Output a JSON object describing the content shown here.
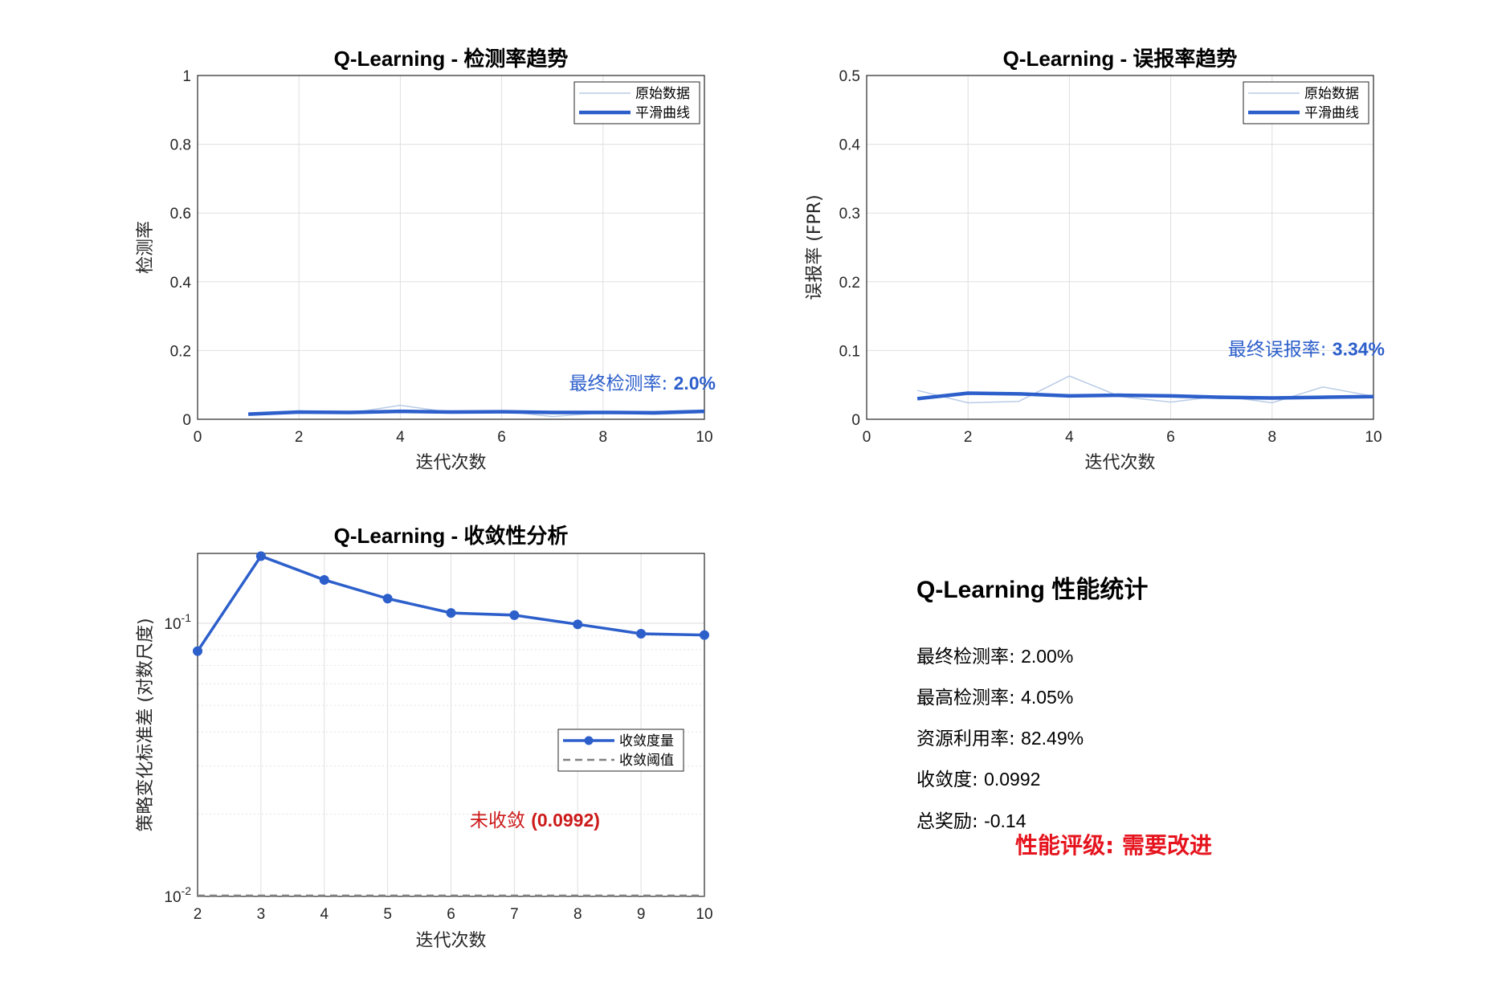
{
  "colors": {
    "main": "#2d5fcb",
    "raw": "#b9cbe6",
    "threshold": "#808080",
    "warn": "#cc1a1a",
    "rating": "#e6141e"
  },
  "chart_data": [
    {
      "id": "detect",
      "type": "line",
      "title": "Q-Learning - 检测率趋势",
      "xlabel": "迭代次数",
      "ylabel": "检测率",
      "xlim": [
        0,
        10
      ],
      "ylim": [
        0,
        1
      ],
      "xticks": [
        "0",
        "2",
        "4",
        "6",
        "8",
        "10"
      ],
      "yticks": [
        "0",
        "0.2",
        "0.4",
        "0.6",
        "0.8",
        "1"
      ],
      "grid": true,
      "legend": "top-right",
      "series": [
        {
          "name": "原始数据",
          "x": [
            1,
            2,
            3,
            4,
            5,
            6,
            7,
            8,
            9,
            10
          ],
          "values": [
            0.012,
            0.022,
            0.018,
            0.0405,
            0.02,
            0.024,
            0.008,
            0.019,
            0.014,
            0.02
          ]
        },
        {
          "name": "平滑曲线",
          "x": [
            1,
            2,
            3,
            4,
            5,
            6,
            7,
            8,
            9,
            10
          ],
          "values": [
            0.015,
            0.021,
            0.02,
            0.023,
            0.021,
            0.022,
            0.02,
            0.02,
            0.019,
            0.023
          ]
        }
      ],
      "annotation": {
        "label": "最终检测率: ",
        "value": "2.0%",
        "x": 10,
        "y": 0.1
      }
    },
    {
      "id": "fpr",
      "type": "line",
      "title": "Q-Learning - 误报率趋势",
      "xlabel": "迭代次数",
      "ylabel": "误报率 (FPR)",
      "xlim": [
        0,
        10
      ],
      "ylim": [
        0,
        0.5
      ],
      "xticks": [
        "0",
        "2",
        "4",
        "6",
        "8",
        "10"
      ],
      "yticks": [
        "0",
        "0.1",
        "0.2",
        "0.3",
        "0.4",
        "0.5"
      ],
      "grid": true,
      "legend": "top-right",
      "series": [
        {
          "name": "原始数据",
          "x": [
            1,
            2,
            3,
            4,
            5,
            6,
            7,
            8,
            9,
            10
          ],
          "values": [
            0.042,
            0.024,
            0.026,
            0.063,
            0.033,
            0.025,
            0.034,
            0.024,
            0.047,
            0.0334
          ]
        },
        {
          "name": "平滑曲线",
          "x": [
            1,
            2,
            3,
            4,
            5,
            6,
            7,
            8,
            9,
            10
          ],
          "values": [
            0.03,
            0.038,
            0.037,
            0.034,
            0.035,
            0.034,
            0.032,
            0.031,
            0.032,
            0.033
          ]
        }
      ],
      "annotation": {
        "label": "最终误报率: ",
        "value": "3.34%",
        "x": 10,
        "y": 0.1
      }
    },
    {
      "id": "conv",
      "type": "line",
      "title": "Q-Learning - 收敛性分析",
      "xlabel": "迭代次数",
      "ylabel": "策略变化标准差 (对数尺度)",
      "xlim": [
        2,
        10
      ],
      "ylim": [
        0.01,
        0.18
      ],
      "yscale": "log",
      "xticks": [
        "2",
        "3",
        "4",
        "5",
        "6",
        "7",
        "8",
        "9",
        "10"
      ],
      "yticks": [
        {
          "base": "10",
          "exp": "-2",
          "value": 0.01
        },
        {
          "base": "10",
          "exp": "-1",
          "value": 0.1
        }
      ],
      "grid": true,
      "legend": "center-right",
      "series": [
        {
          "name": "收敛度量",
          "x": [
            2,
            3,
            4,
            5,
            6,
            7,
            8,
            9,
            10
          ],
          "values": [
            0.079,
            0.176,
            0.144,
            0.123,
            0.109,
            0.107,
            0.099,
            0.0915,
            0.0905
          ]
        },
        {
          "name": "收敛阈值",
          "x": [
            2,
            10
          ],
          "values": [
            0.01,
            0.01
          ]
        }
      ],
      "annotation": {
        "label": "未收敛 ",
        "value": "(0.0992)",
        "x": 8.3,
        "y": 0.019
      }
    }
  ],
  "stats": {
    "title": "Q-Learning 性能统计",
    "lines": [
      {
        "label": "最终检测率: ",
        "value": "2.00%"
      },
      {
        "label": "最高检测率: ",
        "value": "4.05%"
      },
      {
        "label": "资源利用率: ",
        "value": "82.49%"
      },
      {
        "label": "收敛度: ",
        "value": "0.0992"
      },
      {
        "label": "总奖励: ",
        "value": "-0.14"
      }
    ],
    "rating": "性能评级: 需要改进"
  }
}
